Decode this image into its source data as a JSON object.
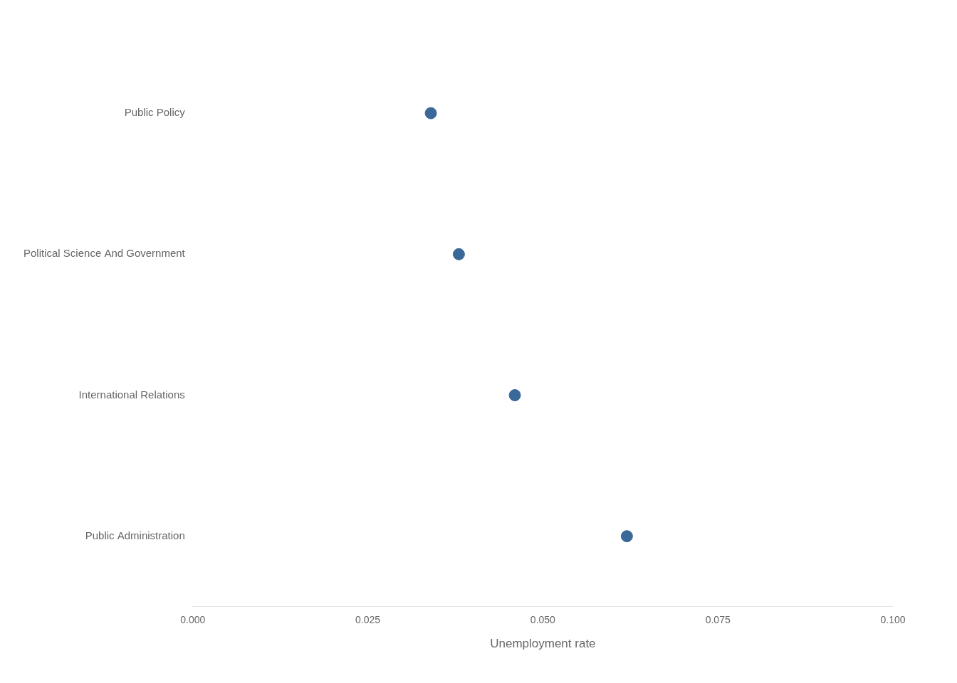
{
  "chart_data": {
    "type": "scatter",
    "categories": [
      "Public Administration",
      "International Relations",
      "Political Science And Government",
      "Public Policy"
    ],
    "values": [
      0.062,
      0.046,
      0.038,
      0.034
    ],
    "color": "#3a6898",
    "xlabel": "Unemployment rate",
    "xlim": [
      0.0,
      0.1
    ],
    "xticks": [
      {
        "value": 0.0,
        "label": "0.000"
      },
      {
        "value": 0.025,
        "label": "0.025"
      },
      {
        "value": 0.05,
        "label": "0.050"
      },
      {
        "value": 0.075,
        "label": "0.075"
      },
      {
        "value": 0.1,
        "label": "0.100"
      }
    ],
    "grid": false
  }
}
